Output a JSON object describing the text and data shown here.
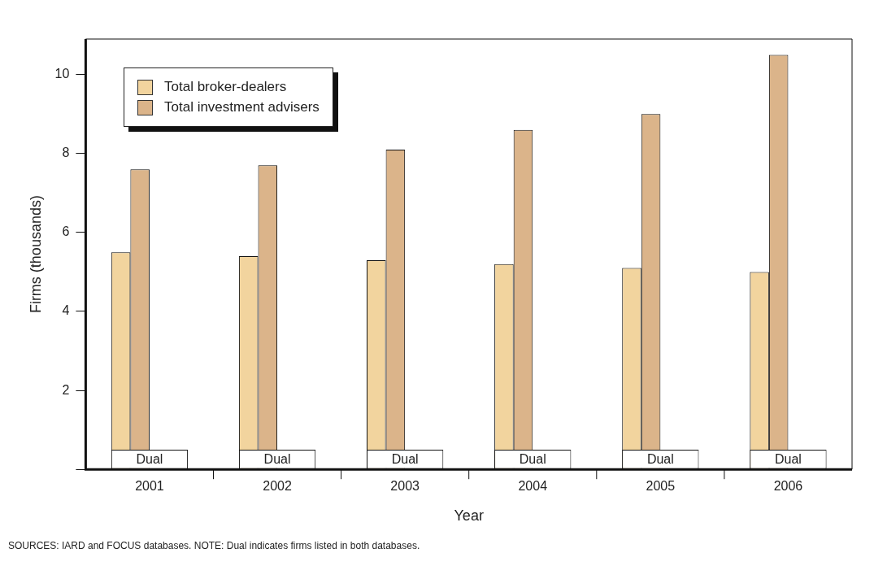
{
  "chart_data": {
    "type": "bar",
    "xlabel": "Year",
    "ylabel": "Firms (thousands)",
    "categories": [
      "2001",
      "2002",
      "2003",
      "2004",
      "2005",
      "2006"
    ],
    "series": [
      {
        "name": "Total broker-dealers",
        "color": "#f2d49e",
        "values": [
          5.5,
          5.4,
          5.3,
          5.2,
          5.1,
          5.0
        ]
      },
      {
        "name": "Total investment advisers",
        "color": "#dbb48a",
        "values": [
          7.6,
          7.7,
          8.1,
          8.6,
          9.0,
          10.5
        ]
      },
      {
        "name": "Dual",
        "type": "bar",
        "color": "#ffffff",
        "values": [
          0.5,
          0.5,
          0.5,
          0.5,
          0.5,
          0.5
        ]
      }
    ],
    "ylim": [
      0,
      10.9
    ],
    "yticks": [
      {
        "value": 0,
        "label": null
      },
      2,
      4,
      6,
      8,
      10
    ],
    "grid": false,
    "legend": "top left",
    "annotations": [
      "SOURCES: IARD and FOCUS databases.  NOTE: Dual indicates firms listed in both databases."
    ]
  }
}
